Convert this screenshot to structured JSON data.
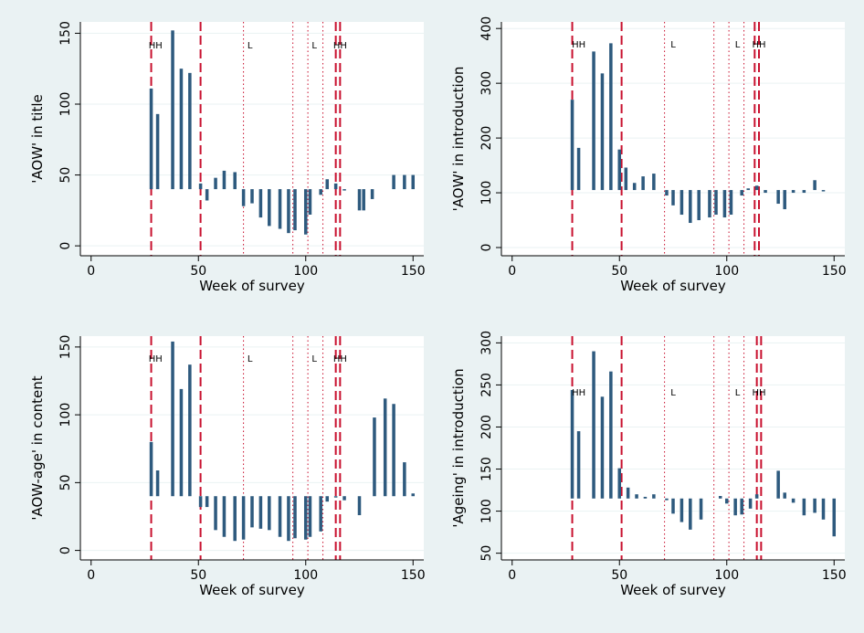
{
  "colors": {
    "background": "#eaf2f3",
    "bar": "#2e5a7e",
    "event_line": "#c8102e"
  },
  "chart_data": [
    {
      "type": "bar",
      "xlabel": "Week of survey",
      "ylabel": "'AOW' in title",
      "xlim": [
        -5,
        155
      ],
      "ylim": [
        -7,
        158
      ],
      "xticks": [
        0,
        50,
        100,
        150
      ],
      "yticks": [
        0,
        50,
        100,
        150
      ],
      "baseline": 40,
      "grid": true,
      "x": [
        28,
        31,
        38,
        42,
        46,
        51,
        54,
        58,
        62,
        67,
        71,
        75,
        79,
        83,
        88,
        92,
        95,
        100,
        102,
        107,
        110,
        114,
        118,
        125,
        127,
        131,
        141,
        146,
        150
      ],
      "values": [
        111,
        93,
        152,
        125,
        122,
        44,
        32,
        48,
        53,
        52,
        28,
        30,
        20,
        14,
        12,
        9,
        11,
        8,
        22,
        36,
        47,
        44,
        40,
        25,
        25,
        33,
        50,
        50,
        50
      ],
      "vlines_dashed": [
        28,
        51,
        114,
        116
      ],
      "vlines_dotted": [
        71,
        94,
        101,
        108
      ],
      "annotations": [
        {
          "text": "HH",
          "x": 30
        },
        {
          "text": "L",
          "x": 74
        },
        {
          "text": "L",
          "x": 104
        },
        {
          "text": "HH",
          "x": 116
        }
      ],
      "annotation_y": 142
    },
    {
      "type": "bar",
      "xlabel": "Week of survey",
      "ylabel": "'AOW' in introduction",
      "xlim": [
        -5,
        155
      ],
      "ylim": [
        -15,
        412
      ],
      "xticks": [
        0,
        50,
        100,
        150
      ],
      "yticks": [
        0,
        100,
        200,
        300,
        400
      ],
      "baseline": 105,
      "grid": true,
      "x": [
        28,
        31,
        38,
        42,
        46,
        50,
        53,
        57,
        61,
        66,
        72,
        75,
        79,
        83,
        87,
        92,
        95,
        99,
        102,
        107,
        110,
        114,
        118,
        124,
        127,
        131,
        136,
        141,
        145
      ],
      "values": [
        270,
        182,
        358,
        318,
        373,
        179,
        146,
        118,
        130,
        135,
        95,
        77,
        60,
        45,
        50,
        55,
        60,
        55,
        60,
        95,
        108,
        113,
        100,
        80,
        70,
        100,
        100,
        123,
        105
      ],
      "vlines_dashed": [
        28,
        51,
        113,
        115
      ],
      "vlines_dotted": [
        71,
        94,
        101,
        108
      ],
      "annotations": [
        {
          "text": "HH",
          "x": 31
        },
        {
          "text": "L",
          "x": 75
        },
        {
          "text": "L",
          "x": 105
        },
        {
          "text": "HH",
          "x": 115
        }
      ],
      "annotation_y": 372
    },
    {
      "type": "bar",
      "xlabel": "Week of survey",
      "ylabel": "'AOW-age' in content",
      "xlim": [
        -5,
        155
      ],
      "ylim": [
        -7,
        158
      ],
      "xticks": [
        0,
        50,
        100,
        150
      ],
      "yticks": [
        0,
        50,
        100,
        150
      ],
      "baseline": 40,
      "grid": true,
      "x": [
        28,
        31,
        38,
        42,
        46,
        51,
        54,
        58,
        62,
        67,
        71,
        75,
        79,
        83,
        88,
        92,
        95,
        100,
        102,
        107,
        110,
        114,
        118,
        125,
        132,
        137,
        141,
        146,
        150
      ],
      "values": [
        80,
        59,
        154,
        119,
        137,
        32,
        32,
        15,
        10,
        7,
        8,
        17,
        16,
        15,
        10,
        7,
        9,
        8,
        10,
        14,
        36,
        40,
        37,
        26,
        98,
        112,
        108,
        65,
        42
      ],
      "vlines_dashed": [
        28,
        51,
        114,
        116
      ],
      "vlines_dotted": [
        71,
        94,
        101,
        108
      ],
      "annotations": [
        {
          "text": "HH",
          "x": 30
        },
        {
          "text": "L",
          "x": 74
        },
        {
          "text": "L",
          "x": 104
        },
        {
          "text": "HH",
          "x": 116
        }
      ],
      "annotation_y": 142
    },
    {
      "type": "bar",
      "xlabel": "Week of survey",
      "ylabel": "'Ageing' in introduction",
      "xlim": [
        -5,
        155
      ],
      "ylim": [
        42,
        308
      ],
      "xticks": [
        0,
        50,
        100,
        150
      ],
      "yticks": [
        50,
        100,
        150,
        200,
        250,
        300
      ],
      "baseline": 115,
      "grid": true,
      "x": [
        28,
        31,
        38,
        42,
        46,
        50,
        54,
        58,
        62,
        66,
        72,
        75,
        79,
        83,
        88,
        97,
        100,
        104,
        107,
        111,
        114,
        124,
        127,
        131,
        136,
        141,
        145,
        150
      ],
      "values": [
        244,
        195,
        290,
        236,
        266,
        151,
        128,
        120,
        117,
        120,
        113,
        97,
        87,
        78,
        90,
        118,
        109,
        95,
        96,
        103,
        120,
        148,
        122,
        110,
        95,
        98,
        90,
        70
      ],
      "vlines_dashed": [
        28,
        51,
        114,
        116
      ],
      "vlines_dotted": [
        71,
        94,
        101,
        108
      ],
      "annotations": [
        {
          "text": "HH",
          "x": 31
        },
        {
          "text": "L",
          "x": 75
        },
        {
          "text": "L",
          "x": 105
        },
        {
          "text": "HH",
          "x": 115
        }
      ],
      "annotation_y": 242
    }
  ]
}
